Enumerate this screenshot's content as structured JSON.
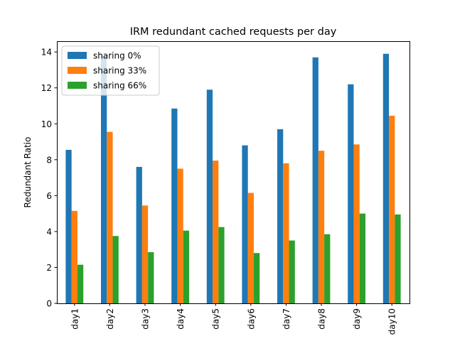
{
  "chart_data": {
    "type": "bar",
    "title": "IRM redundant cached requests per day",
    "xlabel": "",
    "ylabel": "Redundant Ratio",
    "ylim": [
      0,
      14.6
    ],
    "yticks": [
      0,
      2,
      4,
      6,
      8,
      10,
      12,
      14
    ],
    "categories": [
      "day1",
      "day2",
      "day3",
      "day4",
      "day5",
      "day6",
      "day7",
      "day8",
      "day9",
      "day10"
    ],
    "series": [
      {
        "name": "sharing 0%",
        "color": "#1f77b4",
        "values": [
          8.55,
          13.8,
          7.6,
          10.85,
          11.9,
          8.8,
          9.7,
          13.7,
          12.2,
          13.9
        ]
      },
      {
        "name": "sharing 33%",
        "color": "#ff7f0e",
        "values": [
          5.15,
          9.55,
          5.45,
          7.5,
          7.95,
          6.15,
          7.8,
          8.5,
          8.85,
          10.45
        ]
      },
      {
        "name": "sharing 66%",
        "color": "#2ca02c",
        "values": [
          2.15,
          3.75,
          2.85,
          4.05,
          4.25,
          2.8,
          3.5,
          3.85,
          5.0,
          4.95
        ]
      }
    ],
    "legend": "top-left",
    "grid": false
  }
}
